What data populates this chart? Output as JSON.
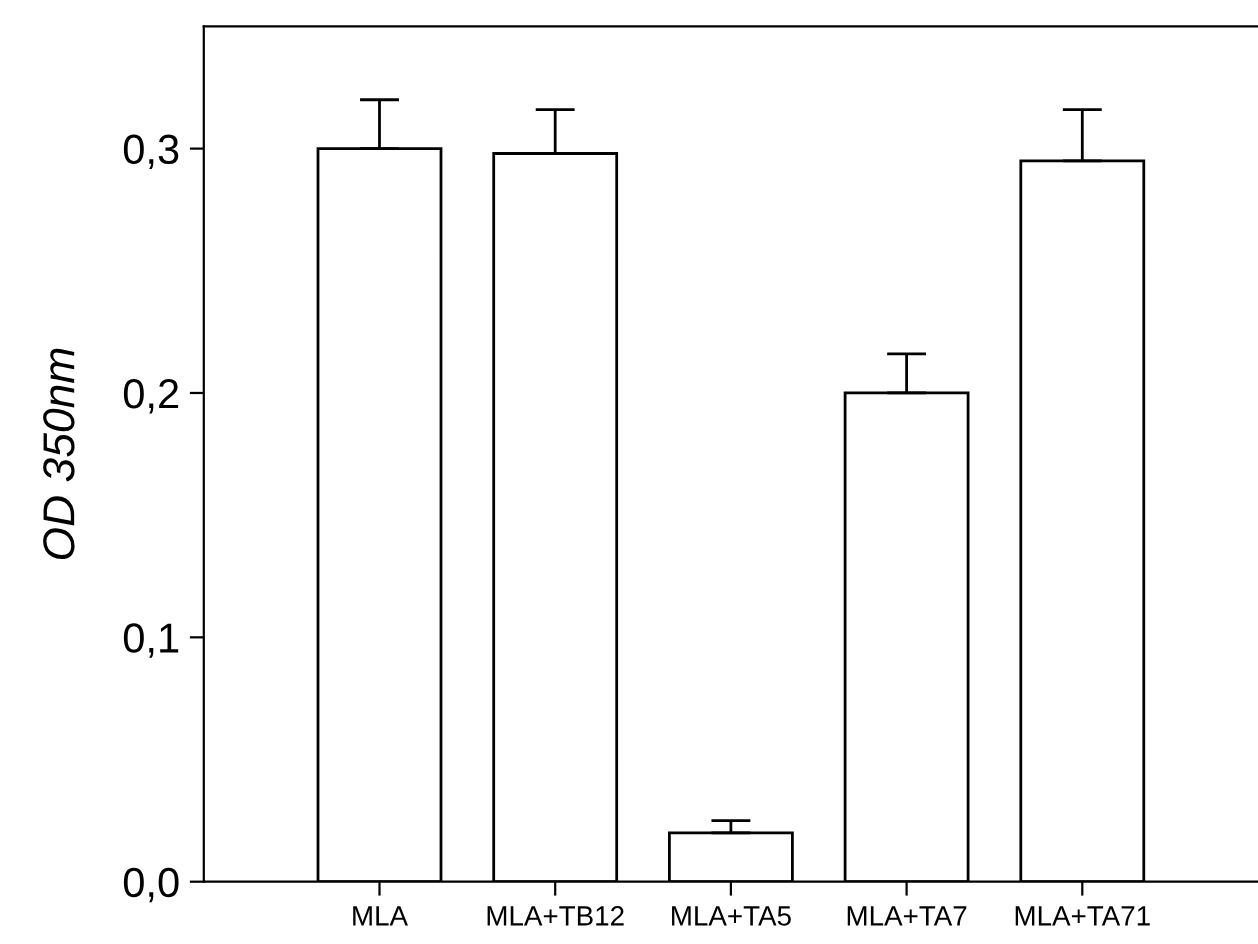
{
  "chart_data": {
    "type": "bar",
    "ylabel": "OD 350nm",
    "categories": [
      "MLA",
      "MLA+TB12",
      "MLA+TA5",
      "MLA+TA7",
      "MLA+TA71"
    ],
    "series": [
      {
        "color": "#ffffff",
        "values": [
          0.3,
          0.298,
          0.02,
          0.2,
          0.295
        ],
        "errors": [
          [
            0.3,
            0.32
          ],
          [
            0.298,
            0.316
          ],
          [
            0.02,
            0.025
          ],
          [
            0.2,
            0.216
          ],
          [
            0.295,
            0.316
          ]
        ]
      }
    ],
    "ylim": [
      0,
      0.35
    ],
    "yticks": [
      {
        "value": 0,
        "label": "0,0"
      },
      {
        "value": 0.1,
        "label": "0,1"
      },
      {
        "value": 0.2,
        "label": "0,2"
      },
      {
        "value": 0.3,
        "label": "0,3"
      }
    ],
    "grid": false,
    "legend": false
  }
}
